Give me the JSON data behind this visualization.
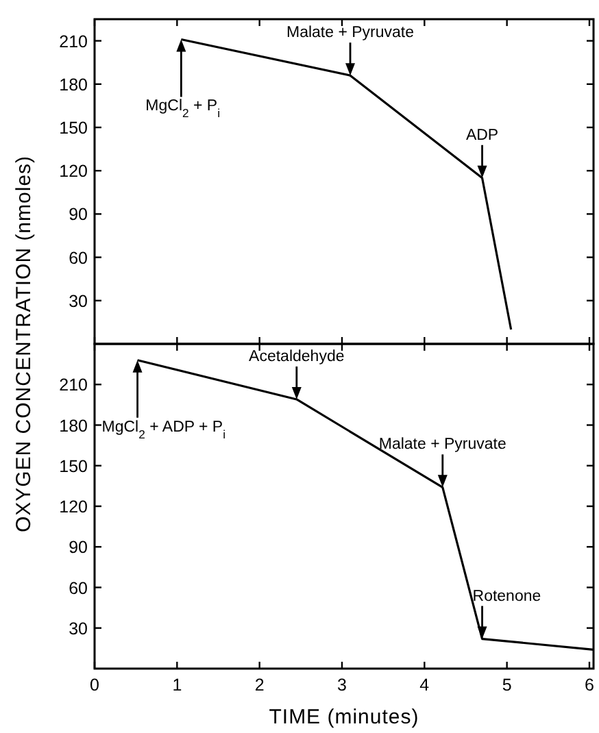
{
  "chart_data": [
    {
      "type": "line",
      "ylabel": "OXYGEN CONCENTRATION (nmoles)",
      "x": [
        1.05,
        3.1,
        4.7,
        5.05
      ],
      "values": [
        211,
        186,
        115,
        10
      ],
      "color": "#000000",
      "xlim": [
        0,
        6.05
      ],
      "ylim": [
        0,
        225
      ],
      "xticks": [
        0,
        1,
        2,
        3,
        4,
        5,
        6
      ],
      "yticks": [
        30,
        60,
        90,
        120,
        150,
        180,
        210
      ],
      "tick_labels": "y",
      "marker": "none",
      "line_style": "solid",
      "annotations": [
        {
          "text": "MgCl$_{2}$ + P$_{i}$",
          "x": 1.05,
          "y": 211
        },
        {
          "text": "Malate + Pyruvate",
          "x": 3.1,
          "y": 186
        },
        {
          "text": "ADP",
          "x": 4.7,
          "y": 115
        }
      ]
    },
    {
      "type": "line",
      "xlabel": "TIME (minutes)",
      "x": [
        0.52,
        2.45,
        4.22,
        4.7,
        6.05
      ],
      "values": [
        228,
        199,
        134,
        22,
        14
      ],
      "color": "#000000",
      "xlim": [
        0,
        6.05
      ],
      "ylim": [
        0,
        240
      ],
      "xticks": [
        0,
        1,
        2,
        3,
        4,
        5,
        6
      ],
      "yticks": [
        30,
        60,
        90,
        120,
        150,
        180,
        210
      ],
      "marker": "none",
      "line_style": "solid",
      "annotations": [
        {
          "text": "MgCl$_{2}$ + ADP + P$_{i}$",
          "x": 0.52,
          "y": 228
        },
        {
          "text": "Acetaldehyde",
          "x": 2.45,
          "y": 199
        },
        {
          "text": "Malate + Pyruvate",
          "x": 4.22,
          "y": 134
        },
        {
          "text": "Rotenone",
          "x": 4.7,
          "y": 22
        }
      ]
    }
  ]
}
